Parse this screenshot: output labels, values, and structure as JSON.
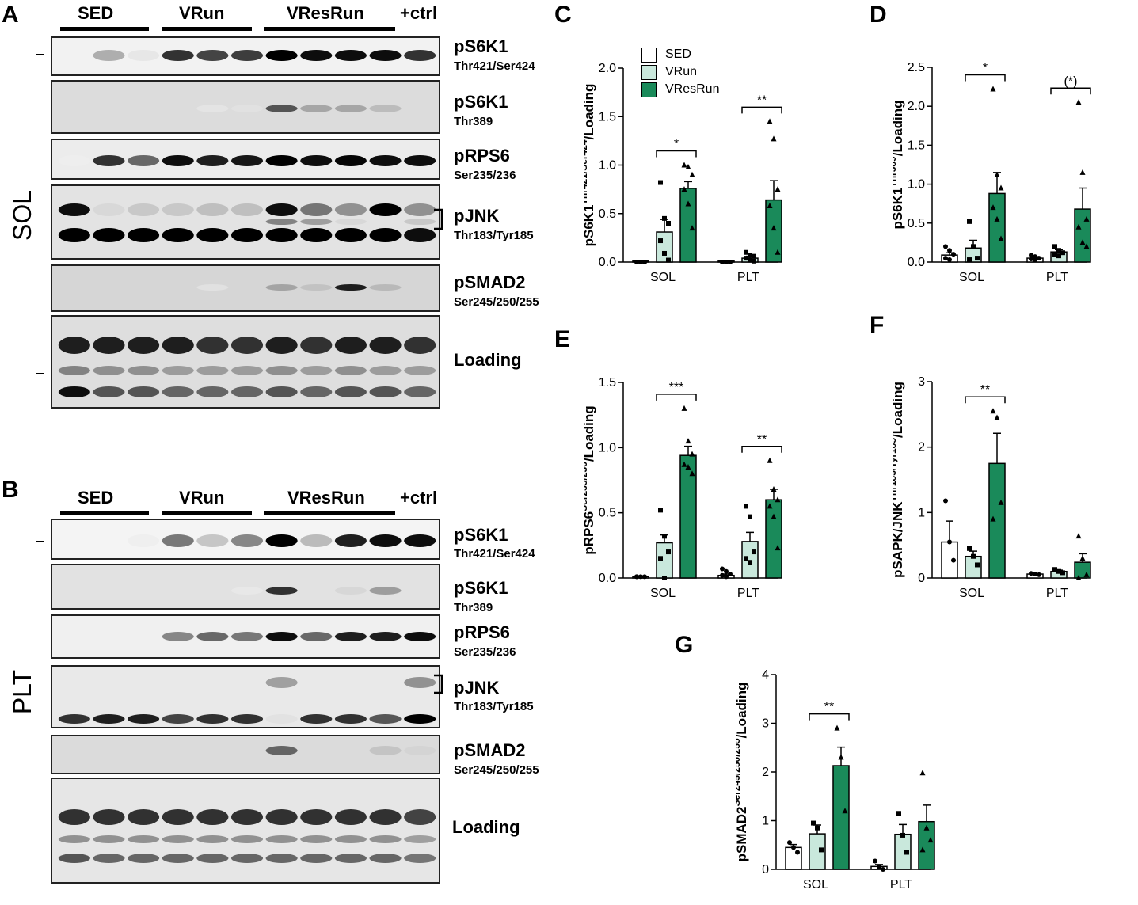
{
  "panels": {
    "A": {
      "label": "A",
      "tissue": "SOL",
      "groups": [
        "SED",
        "VRun",
        "VResRun",
        "+ctrl"
      ],
      "blots": [
        {
          "name": "pS6K1",
          "site": "Thr421/Ser424"
        },
        {
          "name": "pS6K1",
          "site": "Thr389"
        },
        {
          "name": "pRPS6",
          "site": "Ser235/236"
        },
        {
          "name": "pJNK",
          "site": "Thr183/Tyr185"
        },
        {
          "name": "pSMAD2",
          "site": "Ser245/250/255"
        },
        {
          "name": "Loading",
          "site": ""
        }
      ]
    },
    "B": {
      "label": "B",
      "tissue": "PLT",
      "groups": [
        "SED",
        "VRun",
        "VResRun",
        "+ctrl"
      ],
      "blots": [
        {
          "name": "pS6K1",
          "site": "Thr421/Ser424"
        },
        {
          "name": "pS6K1",
          "site": "Thr389"
        },
        {
          "name": "pRPS6",
          "site": "Ser235/236"
        },
        {
          "name": "pJNK",
          "site": "Thr183/Tyr185"
        },
        {
          "name": "pSMAD2",
          "site": "Ser245/250/255"
        },
        {
          "name": "Loading",
          "site": ""
        }
      ]
    }
  },
  "legend": {
    "entries": [
      {
        "label": "SED",
        "color": "#ffffff"
      },
      {
        "label": "VRun",
        "color": "#c9e8dc"
      },
      {
        "label": "VResRun",
        "color": "#1a8a5a"
      }
    ]
  },
  "chart_data": [
    {
      "panel": "C",
      "type": "bar",
      "ylabel_main": "pS6K1",
      "ylabel_sup": "Thr421/Ser424",
      "ylabel_tail": "/Loading",
      "categories": [
        "SOL",
        "PLT"
      ],
      "ylim": [
        0,
        2.0
      ],
      "yticks": [
        "0.0",
        "0.5",
        "1.0",
        "1.5",
        "2.0"
      ],
      "series": [
        {
          "name": "SED",
          "values": [
            0.01,
            0.01
          ],
          "sem": [
            0,
            0
          ]
        },
        {
          "name": "VRun",
          "values": [
            0.31,
            0.04
          ],
          "sem": [
            0.13,
            0.02
          ]
        },
        {
          "name": "VResRun",
          "values": [
            0.76,
            0.64
          ],
          "sem": [
            0.07,
            0.2
          ]
        }
      ],
      "points": [
        [
          [
            0,
            0,
            0,
            0,
            0,
            0
          ],
          [
            0.82,
            0.45,
            0.4,
            0.22,
            0.09,
            0.02
          ],
          [
            1.0,
            0.98,
            0.9,
            0.75,
            0.6,
            0.35
          ]
        ],
        [
          [
            0,
            0,
            0,
            0,
            0,
            0
          ],
          [
            0.1,
            0.07,
            0.06,
            0.04,
            0.02,
            0.01
          ],
          [
            1.45,
            1.27,
            0.75,
            0.58,
            0.35,
            0.1
          ]
        ]
      ],
      "sig": [
        {
          "category": 0,
          "text": "*"
        },
        {
          "category": 1,
          "text": "**"
        }
      ]
    },
    {
      "panel": "D",
      "type": "bar",
      "ylabel_main": "pS6K1",
      "ylabel_sup": "Thr389",
      "ylabel_tail": "/Loading",
      "categories": [
        "SOL",
        "PLT"
      ],
      "ylim": [
        0,
        2.5
      ],
      "yticks": [
        "0.0",
        "0.5",
        "1.0",
        "1.5",
        "2.0",
        "2.5"
      ],
      "series": [
        {
          "name": "SED",
          "values": [
            0.09,
            0.05
          ],
          "sem": [
            0.03,
            0.02
          ]
        },
        {
          "name": "VRun",
          "values": [
            0.18,
            0.13
          ],
          "sem": [
            0.1,
            0.03
          ]
        },
        {
          "name": "VResRun",
          "values": [
            0.88,
            0.68
          ],
          "sem": [
            0.27,
            0.27
          ]
        }
      ],
      "points": [
        [
          [
            0.2,
            0.15,
            0.1,
            0.05,
            0.03
          ],
          [
            0.52,
            0.2,
            0.05,
            0.03
          ],
          [
            2.22,
            1.12,
            0.95,
            0.7,
            0.55,
            0.3
          ]
        ],
        [
          [
            0.09,
            0.07,
            0.05,
            0.04,
            0.03
          ],
          [
            0.2,
            0.15,
            0.12,
            0.1,
            0.08
          ],
          [
            2.05,
            1.15,
            0.55,
            0.45,
            0.25,
            0.2
          ]
        ]
      ],
      "sig": [
        {
          "category": 0,
          "text": "*"
        },
        {
          "category": 1,
          "text": "(*)"
        }
      ]
    },
    {
      "panel": "E",
      "type": "bar",
      "ylabel_main": "pRPS6",
      "ylabel_sup": "Ser235/236",
      "ylabel_tail": "/Loading",
      "categories": [
        "SOL",
        "PLT"
      ],
      "ylim": [
        0,
        1.5
      ],
      "yticks": [
        "0.0",
        "0.5",
        "1.0",
        "1.5"
      ],
      "series": [
        {
          "name": "SED",
          "values": [
            0.01,
            0.02
          ],
          "sem": [
            0,
            0.01
          ]
        },
        {
          "name": "VRun",
          "values": [
            0.27,
            0.28
          ],
          "sem": [
            0.06,
            0.07
          ]
        },
        {
          "name": "VResRun",
          "values": [
            0.94,
            0.6
          ],
          "sem": [
            0.07,
            0.08
          ]
        }
      ],
      "points": [
        [
          [
            0.01,
            0.01,
            0.01,
            0.01
          ],
          [
            0.52,
            0.32,
            0.2,
            0.15,
            0.0
          ],
          [
            1.3,
            1.05,
            0.95,
            0.87,
            0.85,
            0.8
          ]
        ],
        [
          [
            0.07,
            0.05,
            0.03,
            0.02,
            0.01
          ],
          [
            0.55,
            0.47,
            0.2,
            0.15,
            0.12
          ],
          [
            0.9,
            0.68,
            0.6,
            0.55,
            0.47,
            0.23
          ]
        ]
      ],
      "sig": [
        {
          "category": 0,
          "text": "***"
        },
        {
          "category": 1,
          "text": "**"
        }
      ]
    },
    {
      "panel": "F",
      "type": "bar",
      "ylabel_main": "pSAPK/JNK",
      "ylabel_sup": "Thr183/Tyr185",
      "ylabel_tail": "/Loading",
      "categories": [
        "SOL",
        "PLT"
      ],
      "ylim": [
        0,
        3
      ],
      "yticks": [
        "0",
        "1",
        "2",
        "3"
      ],
      "series": [
        {
          "name": "SED",
          "values": [
            0.55,
            0.06
          ],
          "sem": [
            0.32,
            0.01
          ]
        },
        {
          "name": "VRun",
          "values": [
            0.33,
            0.1
          ],
          "sem": [
            0.08,
            0.02
          ]
        },
        {
          "name": "VResRun",
          "values": [
            1.75,
            0.24
          ],
          "sem": [
            0.46,
            0.13
          ]
        }
      ],
      "points": [
        [
          [
            1.18,
            0.55,
            0.27
          ],
          [
            0.45,
            0.33,
            0.2
          ],
          [
            2.55,
            2.45,
            1.15,
            0.9
          ]
        ],
        [
          [
            0.07,
            0.06,
            0.05
          ],
          [
            0.13,
            0.1,
            0.08
          ],
          [
            0.64,
            0.3,
            0.05,
            0.0
          ]
        ]
      ],
      "sig": [
        {
          "category": 0,
          "text": "**"
        }
      ]
    },
    {
      "panel": "G",
      "type": "bar",
      "ylabel_main": "pSMAD2",
      "ylabel_sup": "Ser245/250/255",
      "ylabel_tail": "/Loading",
      "categories": [
        "SOL",
        "PLT"
      ],
      "ylim": [
        0,
        4
      ],
      "yticks": [
        "0",
        "1",
        "2",
        "3",
        "4"
      ],
      "series": [
        {
          "name": "SED",
          "values": [
            0.45,
            0.06
          ],
          "sem": [
            0.06,
            0.04
          ]
        },
        {
          "name": "VRun",
          "values": [
            0.73,
            0.72
          ],
          "sem": [
            0.18,
            0.2
          ]
        },
        {
          "name": "VResRun",
          "values": [
            2.13,
            0.98
          ],
          "sem": [
            0.38,
            0.34
          ]
        }
      ],
      "points": [
        [
          [
            0.55,
            0.45,
            0.35
          ],
          [
            0.95,
            0.85,
            0.4
          ],
          [
            2.9,
            2.3,
            1.2
          ]
        ],
        [
          [
            0.17,
            0.05,
            0.0
          ],
          [
            1.15,
            0.7,
            0.35
          ],
          [
            1.98,
            0.85,
            0.6,
            0.4
          ]
        ]
      ],
      "sig": [
        {
          "category": 0,
          "text": "**"
        }
      ]
    }
  ]
}
